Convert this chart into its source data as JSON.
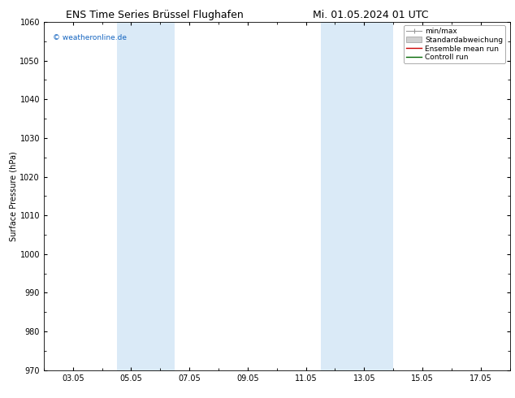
{
  "title_left": "ENS Time Series Brüssel Flughafen",
  "title_right": "Mi. 01.05.2024 01 UTC",
  "ylabel": "Surface Pressure (hPa)",
  "ylim": [
    970,
    1060
  ],
  "yticks": [
    970,
    980,
    990,
    1000,
    1010,
    1020,
    1030,
    1040,
    1050,
    1060
  ],
  "xtick_labels": [
    "03.05",
    "05.05",
    "07.05",
    "09.05",
    "11.05",
    "13.05",
    "15.05",
    "17.05"
  ],
  "xtick_positions": [
    2,
    4,
    6,
    8,
    10,
    12,
    14,
    16
  ],
  "xmin": 1,
  "xmax": 17,
  "shaded_bands": [
    {
      "xstart": 3.5,
      "xend": 5.5,
      "color": "#daeaf7"
    },
    {
      "xstart": 10.5,
      "xend": 13.0,
      "color": "#daeaf7"
    }
  ],
  "watermark": "© weatheronline.de",
  "watermark_color": "#1565C0",
  "legend_items": [
    {
      "label": "min/max",
      "type": "minmax"
    },
    {
      "label": "Standardabweichung",
      "type": "patch",
      "color": "#d0d0d0"
    },
    {
      "label": "Ensemble mean run",
      "type": "line",
      "color": "#cc0000"
    },
    {
      "label": "Controll run",
      "type": "line",
      "color": "#006600"
    }
  ],
  "bg_color": "#ffffff",
  "plot_bg_color": "#ffffff",
  "title_fontsize": 9,
  "label_fontsize": 7,
  "tick_fontsize": 7,
  "legend_fontsize": 6.5
}
